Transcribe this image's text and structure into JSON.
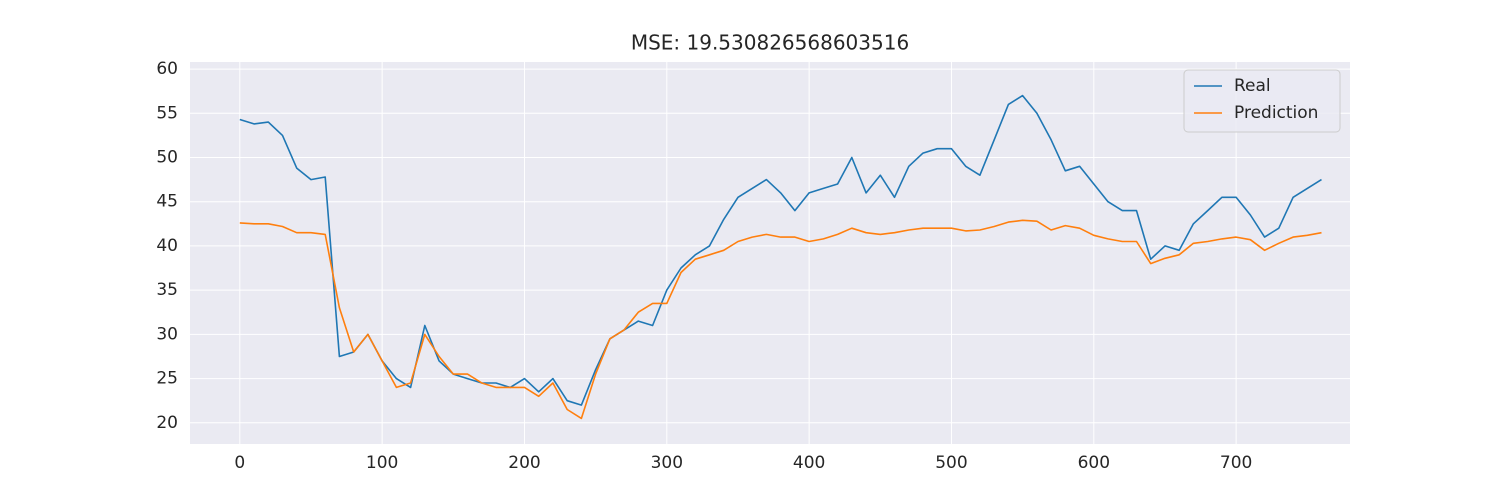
{
  "chart_data": {
    "type": "line",
    "title": "MSE: 19.530826568603516",
    "x": [
      0,
      10,
      20,
      30,
      40,
      50,
      60,
      70,
      80,
      90,
      100,
      110,
      120,
      130,
      140,
      150,
      160,
      170,
      180,
      190,
      200,
      210,
      220,
      230,
      240,
      250,
      260,
      270,
      280,
      290,
      300,
      310,
      320,
      330,
      340,
      350,
      360,
      370,
      380,
      390,
      400,
      410,
      420,
      430,
      440,
      450,
      460,
      470,
      480,
      490,
      500,
      510,
      520,
      530,
      540,
      550,
      560,
      570,
      580,
      590,
      600,
      610,
      620,
      630,
      640,
      650,
      660,
      670,
      680,
      690,
      700,
      710,
      720,
      730,
      740,
      750,
      760
    ],
    "series": [
      {
        "name": "Real",
        "color": "#1f77b4",
        "values": [
          54.3,
          53.8,
          54.0,
          52.5,
          48.8,
          47.5,
          47.8,
          27.5,
          28,
          30,
          27,
          25,
          24,
          31,
          27,
          25.5,
          25,
          24.5,
          24.5,
          24,
          25,
          23.5,
          25,
          22.5,
          22,
          26,
          29.5,
          30.5,
          31.5,
          31,
          35,
          37.5,
          39,
          40,
          43,
          45.5,
          46.5,
          47.5,
          46,
          44,
          46,
          46.5,
          47,
          50,
          46,
          48,
          45.5,
          49,
          50.5,
          51,
          51,
          49,
          48,
          52,
          56,
          57,
          55,
          52,
          48.5,
          49,
          47,
          45,
          44,
          44,
          38.5,
          40,
          39.5,
          42.5,
          44,
          45.5,
          45.5,
          43.5,
          41,
          42,
          45.5,
          46.5,
          47.5
        ]
      },
      {
        "name": "Prediction",
        "color": "#ff7f0e",
        "values": [
          42.6,
          42.5,
          42.5,
          42.2,
          41.5,
          41.5,
          41.3,
          33,
          28,
          30,
          27,
          24,
          24.5,
          30,
          27.5,
          25.5,
          25.5,
          24.5,
          24,
          24,
          24,
          23,
          24.5,
          21.5,
          20.5,
          25.5,
          29.5,
          30.5,
          32.5,
          33.5,
          33.5,
          37,
          38.5,
          39,
          39.5,
          40.5,
          41,
          41.3,
          41,
          41,
          40.5,
          40.8,
          41.3,
          42,
          41.5,
          41.3,
          41.5,
          41.8,
          42,
          42,
          42,
          41.7,
          41.8,
          42.2,
          42.7,
          42.9,
          42.8,
          41.8,
          42.3,
          42,
          41.2,
          40.8,
          40.5,
          40.5,
          38,
          38.6,
          39,
          40.3,
          40.5,
          40.8,
          41,
          40.7,
          39.5,
          40.3,
          41,
          41.2,
          41.5
        ]
      }
    ],
    "xlim": [
      -35,
      780
    ],
    "ylim": [
      17.6,
      60.8
    ],
    "xticks": [
      0,
      100,
      200,
      300,
      400,
      500,
      600,
      700
    ],
    "yticks": [
      20,
      25,
      30,
      35,
      40,
      45,
      50,
      55,
      60
    ],
    "grid": true,
    "legend": "upper right"
  }
}
